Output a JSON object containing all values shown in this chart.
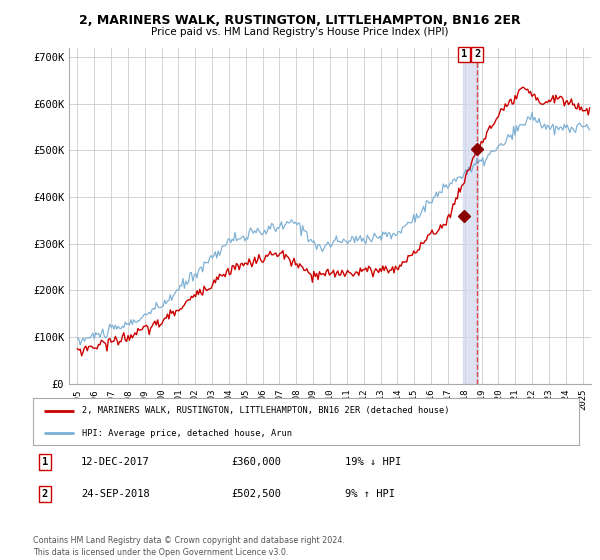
{
  "title1": "2, MARINERS WALK, RUSTINGTON, LITTLEHAMPTON, BN16 2ER",
  "title2": "Price paid vs. HM Land Registry's House Price Index (HPI)",
  "background_color": "#ffffff",
  "plot_bg_color": "#ffffff",
  "grid_color": "#cccccc",
  "hpi_color": "#7bafd4",
  "price_color": "#cc0000",
  "marker_color": "#8b0000",
  "vline_fill_color": "#d0d8f0",
  "vline_dash_color": "#dd4444",
  "sale1_date": 2017.95,
  "sale1_price": 360000,
  "sale2_date": 2018.73,
  "sale2_price": 502500,
  "ylim_min": 0,
  "ylim_max": 720000,
  "xlim_min": 1994.5,
  "xlim_max": 2025.5,
  "yticks": [
    0,
    100000,
    200000,
    300000,
    400000,
    500000,
    600000,
    700000
  ],
  "ytick_labels": [
    "£0",
    "£100K",
    "£200K",
    "£300K",
    "£400K",
    "£500K",
    "£600K",
    "£700K"
  ],
  "xticks": [
    1995,
    1996,
    1997,
    1998,
    1999,
    2000,
    2001,
    2002,
    2003,
    2004,
    2005,
    2006,
    2007,
    2008,
    2009,
    2010,
    2011,
    2012,
    2013,
    2014,
    2015,
    2016,
    2017,
    2018,
    2019,
    2020,
    2021,
    2022,
    2023,
    2024,
    2025
  ],
  "legend_label1": "2, MARINERS WALK, RUSTINGTON, LITTLEHAMPTON, BN16 2ER (detached house)",
  "legend_label2": "HPI: Average price, detached house, Arun",
  "note1_num": "1",
  "note1_date": "12-DEC-2017",
  "note1_price": "£360,000",
  "note1_hpi": "19% ↓ HPI",
  "note2_num": "2",
  "note2_date": "24-SEP-2018",
  "note2_price": "£502,500",
  "note2_hpi": "9% ↑ HPI",
  "footer": "Contains HM Land Registry data © Crown copyright and database right 2024.\nThis data is licensed under the Open Government Licence v3.0."
}
